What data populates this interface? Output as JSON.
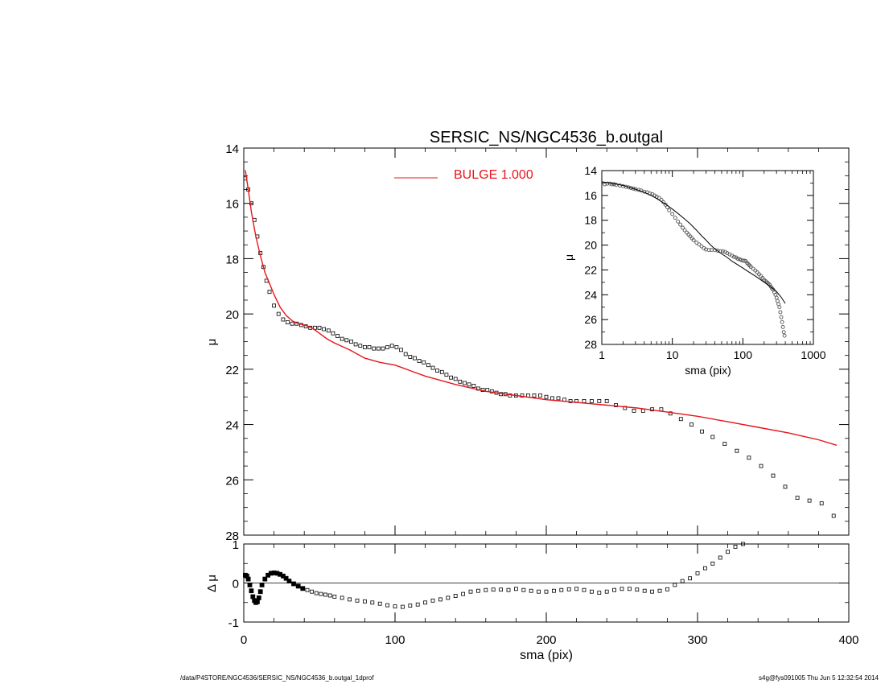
{
  "figure_title": "SERSIC_NS/NGC4536_b.outgal",
  "footer": {
    "left": "/data/P4STORE/NGC4536/SERSIC_NS/NGC4536_b.outgal_1dprof",
    "right": "s4g@fys091005  Thu Jun  5 12:32:54 2014"
  },
  "chart_data": [
    {
      "id": "main",
      "type": "scatter",
      "title": "SERSIC_NS/NGC4536_b.outgal",
      "xlabel": "",
      "ylabel": "μ",
      "xlim": [
        0,
        400
      ],
      "ylim": [
        28,
        14
      ],
      "y_inverted": true,
      "y_ticks": [
        "14",
        "16",
        "18",
        "20",
        "22",
        "24",
        "26",
        "28"
      ],
      "legend": {
        "entries": [
          {
            "label": "BULGE  1.000",
            "color": "#e8141c"
          }
        ],
        "placement": "top-center"
      },
      "series": [
        {
          "name": "",
          "kind": "points",
          "marker": "square",
          "color": "#000000",
          "x": [
            1,
            3,
            5,
            7,
            9,
            11,
            13,
            15,
            17,
            20,
            23,
            26,
            29,
            32,
            35,
            38,
            41,
            44,
            47,
            50,
            53,
            56,
            59,
            62,
            65,
            68,
            71,
            74,
            77,
            80,
            83,
            86,
            89,
            92,
            95,
            98,
            101,
            104,
            107,
            110,
            113,
            116,
            119,
            122,
            125,
            128,
            131,
            134,
            137,
            140,
            143,
            146,
            149,
            152,
            155,
            158,
            161,
            164,
            167,
            170,
            173,
            176,
            180,
            184,
            188,
            192,
            196,
            200,
            204,
            208,
            212,
            216,
            220,
            225,
            230,
            235,
            240,
            246,
            252,
            258,
            264,
            270,
            276,
            282,
            289,
            296,
            303,
            310,
            318,
            326,
            334,
            342,
            350,
            358,
            366,
            374,
            382,
            390
          ],
          "y": [
            15.1,
            15.5,
            16.0,
            16.6,
            17.2,
            17.8,
            18.3,
            18.8,
            19.2,
            19.7,
            20.0,
            20.2,
            20.3,
            20.35,
            20.35,
            20.4,
            20.45,
            20.5,
            20.5,
            20.5,
            20.55,
            20.6,
            20.7,
            20.8,
            20.9,
            20.95,
            21.0,
            21.1,
            21.15,
            21.2,
            21.2,
            21.25,
            21.25,
            21.25,
            21.2,
            21.15,
            21.2,
            21.3,
            21.45,
            21.55,
            21.6,
            21.7,
            21.75,
            21.85,
            21.95,
            22.05,
            22.1,
            22.2,
            22.3,
            22.35,
            22.45,
            22.5,
            22.55,
            22.6,
            22.7,
            22.75,
            22.75,
            22.8,
            22.85,
            22.9,
            22.9,
            22.95,
            22.95,
            22.95,
            22.95,
            22.95,
            22.95,
            23.0,
            23.05,
            23.05,
            23.1,
            23.15,
            23.15,
            23.15,
            23.15,
            23.15,
            23.15,
            23.3,
            23.4,
            23.5,
            23.5,
            23.45,
            23.45,
            23.6,
            23.8,
            24.0,
            24.25,
            24.45,
            24.7,
            24.95,
            25.2,
            25.5,
            25.85,
            26.25,
            26.65,
            26.75,
            26.85,
            27.3
          ]
        },
        {
          "name": "BULGE  1.000",
          "kind": "line",
          "color": "#e8141c",
          "x": [
            1,
            3,
            5,
            8,
            11,
            14,
            17,
            20,
            24,
            28,
            32,
            36,
            40,
            45,
            50,
            55,
            60,
            70,
            80,
            90,
            100,
            110,
            120,
            140,
            160,
            180,
            200,
            220,
            240,
            260,
            280,
            300,
            320,
            340,
            360,
            380,
            392
          ],
          "y": [
            14.8,
            15.5,
            16.3,
            17.2,
            17.9,
            18.5,
            18.9,
            19.3,
            19.75,
            20.05,
            20.25,
            20.35,
            20.4,
            20.5,
            20.7,
            20.9,
            21.05,
            21.3,
            21.6,
            21.75,
            21.85,
            22.05,
            22.25,
            22.55,
            22.8,
            22.95,
            23.1,
            23.2,
            23.3,
            23.4,
            23.55,
            23.7,
            23.9,
            24.1,
            24.3,
            24.55,
            24.75
          ]
        }
      ]
    },
    {
      "id": "residual",
      "type": "scatter",
      "xlabel": "sma (pix)",
      "ylabel": "Δ μ",
      "xlim": [
        0,
        400
      ],
      "ylim": [
        -1,
        1
      ],
      "x_ticks": [
        "0",
        "100",
        "200",
        "300",
        "400"
      ],
      "y_ticks": [
        "-1",
        "0",
        "1"
      ],
      "zero_line": true,
      "series": [
        {
          "name": "",
          "kind": "points",
          "marker": "square",
          "color": "#000000",
          "x": [
            1,
            2,
            3,
            4,
            5,
            6,
            7,
            8,
            9,
            10,
            11,
            12,
            14,
            16,
            18,
            20,
            22,
            24,
            26,
            28,
            30,
            33,
            36,
            39,
            42,
            45,
            48,
            51,
            54,
            57,
            60,
            65,
            70,
            75,
            80,
            85,
            90,
            95,
            100,
            105,
            110,
            115,
            120,
            125,
            130,
            135,
            140,
            145,
            150,
            155,
            160,
            165,
            170,
            175,
            180,
            185,
            190,
            195,
            200,
            205,
            210,
            215,
            220,
            225,
            230,
            235,
            240,
            245,
            250,
            255,
            260,
            265,
            270,
            275,
            280,
            285,
            290,
            295,
            300,
            305,
            310,
            315,
            320,
            325,
            330
          ],
          "y": [
            0.2,
            0.18,
            0.1,
            -0.05,
            -0.2,
            -0.35,
            -0.45,
            -0.5,
            -0.48,
            -0.38,
            -0.22,
            -0.05,
            0.1,
            0.2,
            0.25,
            0.26,
            0.25,
            0.22,
            0.18,
            0.12,
            0.05,
            -0.02,
            -0.08,
            -0.14,
            -0.18,
            -0.22,
            -0.26,
            -0.28,
            -0.3,
            -0.32,
            -0.35,
            -0.38,
            -0.42,
            -0.45,
            -0.47,
            -0.5,
            -0.53,
            -0.57,
            -0.6,
            -0.61,
            -0.58,
            -0.55,
            -0.5,
            -0.45,
            -0.42,
            -0.38,
            -0.33,
            -0.28,
            -0.22,
            -0.2,
            -0.18,
            -0.17,
            -0.17,
            -0.18,
            -0.15,
            -0.18,
            -0.2,
            -0.22,
            -0.22,
            -0.2,
            -0.18,
            -0.16,
            -0.15,
            -0.18,
            -0.22,
            -0.25,
            -0.22,
            -0.18,
            -0.15,
            -0.15,
            -0.17,
            -0.2,
            -0.22,
            -0.2,
            -0.16,
            -0.05,
            0.05,
            0.12,
            0.25,
            0.38,
            0.5,
            0.65,
            0.8,
            0.93,
            1.0
          ]
        }
      ]
    },
    {
      "id": "inset",
      "type": "scatter",
      "xlabel": "sma (pix)",
      "ylabel": "μ",
      "x_scale": "log",
      "xlim": [
        1,
        1000
      ],
      "ylim": [
        28,
        14
      ],
      "y_inverted": true,
      "x_ticks": [
        "1",
        "10",
        "100",
        "1000"
      ],
      "y_ticks": [
        "14",
        "16",
        "18",
        "20",
        "22",
        "24",
        "26",
        "28"
      ],
      "series": [
        {
          "name": "",
          "kind": "points",
          "marker": "circle",
          "color": "#000000",
          "x": [
            1.1,
            1.2,
            1.3,
            1.4,
            1.5,
            1.6,
            1.8,
            2.0,
            2.2,
            2.4,
            2.6,
            2.8,
            3.0,
            3.3,
            3.6,
            4.0,
            4.4,
            4.8,
            5.2,
            5.6,
            6.0,
            6.5,
            7.0,
            7.5,
            8.0,
            8.5,
            9.0,
            10,
            11,
            12,
            13,
            14,
            15,
            16,
            17,
            18,
            19,
            20,
            22,
            24,
            26,
            28,
            30,
            33,
            36,
            40,
            44,
            48,
            52,
            56,
            60,
            65,
            70,
            75,
            80,
            85,
            90,
            95,
            100,
            105,
            110,
            115,
            120,
            125,
            130,
            140,
            150,
            160,
            170,
            180,
            190,
            200,
            210,
            220,
            230,
            240,
            250,
            260,
            270,
            280,
            290,
            300,
            310,
            320,
            330,
            340,
            350,
            360,
            370,
            380,
            390
          ],
          "y": [
            15.1,
            15.05,
            15.05,
            15.1,
            15.1,
            15.15,
            15.2,
            15.25,
            15.3,
            15.35,
            15.4,
            15.45,
            15.5,
            15.55,
            15.6,
            15.7,
            15.75,
            15.85,
            15.9,
            16.0,
            16.1,
            16.2,
            16.35,
            16.55,
            16.75,
            16.95,
            17.2,
            17.5,
            17.8,
            18.1,
            18.35,
            18.6,
            18.8,
            19.0,
            19.15,
            19.3,
            19.45,
            19.6,
            19.8,
            19.95,
            20.1,
            20.25,
            20.35,
            20.4,
            20.4,
            20.4,
            20.45,
            20.5,
            20.5,
            20.55,
            20.65,
            20.75,
            20.85,
            20.95,
            21.0,
            21.1,
            21.15,
            21.2,
            21.25,
            21.25,
            21.3,
            21.45,
            21.55,
            21.65,
            21.75,
            21.9,
            22.05,
            22.2,
            22.35,
            22.5,
            22.65,
            22.8,
            22.9,
            23.0,
            23.1,
            23.2,
            23.35,
            23.5,
            23.6,
            23.8,
            24.0,
            24.25,
            24.5,
            24.75,
            25.0,
            25.4,
            25.8,
            26.2,
            26.6,
            27.0,
            27.3
          ]
        },
        {
          "name": "",
          "kind": "line",
          "color": "#000000",
          "x": [
            1,
            1.5,
            2,
            3,
            4,
            5,
            6,
            7,
            8,
            10,
            12,
            15,
            18,
            22,
            26,
            30,
            35,
            40,
            50,
            60,
            70,
            80,
            100,
            120,
            150,
            180,
            220,
            260,
            300,
            350,
            400
          ],
          "y": [
            14.9,
            15.05,
            15.2,
            15.5,
            15.75,
            16.0,
            16.25,
            16.5,
            16.7,
            17.1,
            17.45,
            17.9,
            18.3,
            18.8,
            19.25,
            19.6,
            20.0,
            20.3,
            20.7,
            21.0,
            21.3,
            21.5,
            21.85,
            22.15,
            22.5,
            22.8,
            23.15,
            23.45,
            23.75,
            24.2,
            24.7
          ]
        }
      ]
    }
  ]
}
